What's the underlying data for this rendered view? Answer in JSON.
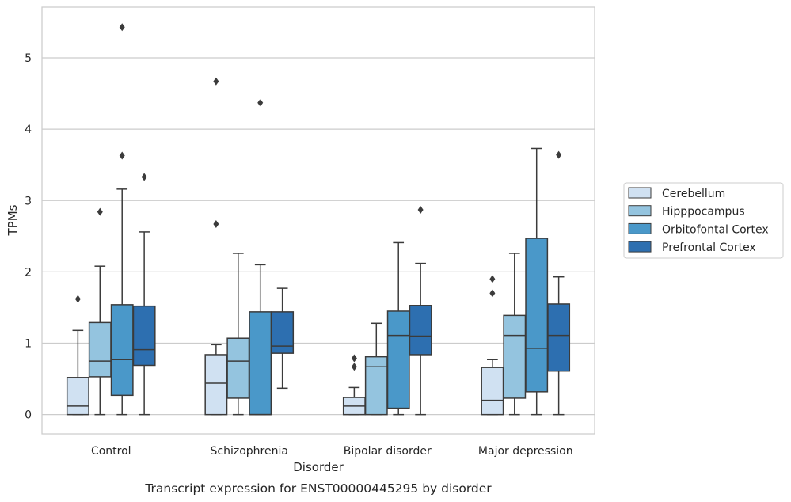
{
  "chart_data": {
    "type": "box",
    "title": "",
    "caption": "Transcript expression for ENST00000445295 by disorder",
    "xlabel": "Disorder",
    "ylabel": "TPMs",
    "ylim": [
      -0.27,
      5.71
    ],
    "yticks": [
      0,
      1,
      2,
      3,
      4,
      5
    ],
    "grid": "y",
    "legend_position": "right",
    "categories": [
      "Control",
      "Schizophrenia",
      "Bipolar disorder",
      "Major depression"
    ],
    "series": [
      {
        "name": "Cerebellum",
        "color": "#d0e1f2",
        "boxes": [
          {
            "min": 0,
            "q1": 0,
            "median": 0.12,
            "q3": 0.52,
            "max": 1.18,
            "outliers": [
              1.62
            ]
          },
          {
            "min": 0,
            "q1": 0,
            "median": 0.44,
            "q3": 0.84,
            "max": 0.98,
            "outliers": [
              2.67,
              4.67
            ]
          },
          {
            "min": 0,
            "q1": 0,
            "median": 0.12,
            "q3": 0.24,
            "max": 0.38,
            "outliers": [
              0.67,
              0.79
            ]
          },
          {
            "min": 0,
            "q1": 0,
            "median": 0.2,
            "q3": 0.66,
            "max": 0.77,
            "outliers": [
              1.7,
              1.9
            ]
          }
        ]
      },
      {
        "name": "Hipppocampus",
        "color": "#94c4df",
        "boxes": [
          {
            "min": 0,
            "q1": 0.53,
            "median": 0.75,
            "q3": 1.29,
            "max": 2.08,
            "outliers": [
              2.84
            ]
          },
          {
            "min": 0,
            "q1": 0.23,
            "median": 0.75,
            "q3": 1.07,
            "max": 2.26,
            "outliers": []
          },
          {
            "min": 0,
            "q1": 0,
            "median": 0.67,
            "q3": 0.81,
            "max": 1.28,
            "outliers": []
          },
          {
            "min": 0,
            "q1": 0.23,
            "median": 1.11,
            "q3": 1.39,
            "max": 2.26,
            "outliers": []
          }
        ]
      },
      {
        "name": "Orbitofontal Cortex",
        "color": "#4a98c9",
        "boxes": [
          {
            "min": 0,
            "q1": 0.27,
            "median": 0.77,
            "q3": 1.54,
            "max": 3.16,
            "outliers": [
              3.63,
              5.43
            ]
          },
          {
            "min": 0,
            "q1": 0,
            "median": 0,
            "q3": 1.44,
            "max": 2.1,
            "outliers": [
              4.37
            ]
          },
          {
            "min": 0,
            "q1": 0.09,
            "median": 1.11,
            "q3": 1.45,
            "max": 2.41,
            "outliers": []
          },
          {
            "min": 0,
            "q1": 0.32,
            "median": 0.93,
            "q3": 2.47,
            "max": 3.73,
            "outliers": []
          }
        ]
      },
      {
        "name": "Prefrontal Cortex",
        "color": "#2d6fb0",
        "boxes": [
          {
            "min": 0,
            "q1": 0.69,
            "median": 0.91,
            "q3": 1.52,
            "max": 2.56,
            "outliers": [
              3.33
            ]
          },
          {
            "min": 0.37,
            "q1": 0.86,
            "median": 0.96,
            "q3": 1.44,
            "max": 1.77,
            "outliers": []
          },
          {
            "min": 0,
            "q1": 0.84,
            "median": 1.1,
            "q3": 1.53,
            "max": 2.12,
            "outliers": [
              2.87
            ]
          },
          {
            "min": 0,
            "q1": 0.61,
            "median": 1.11,
            "q3": 1.55,
            "max": 1.93,
            "outliers": [
              3.64
            ]
          }
        ]
      }
    ]
  }
}
